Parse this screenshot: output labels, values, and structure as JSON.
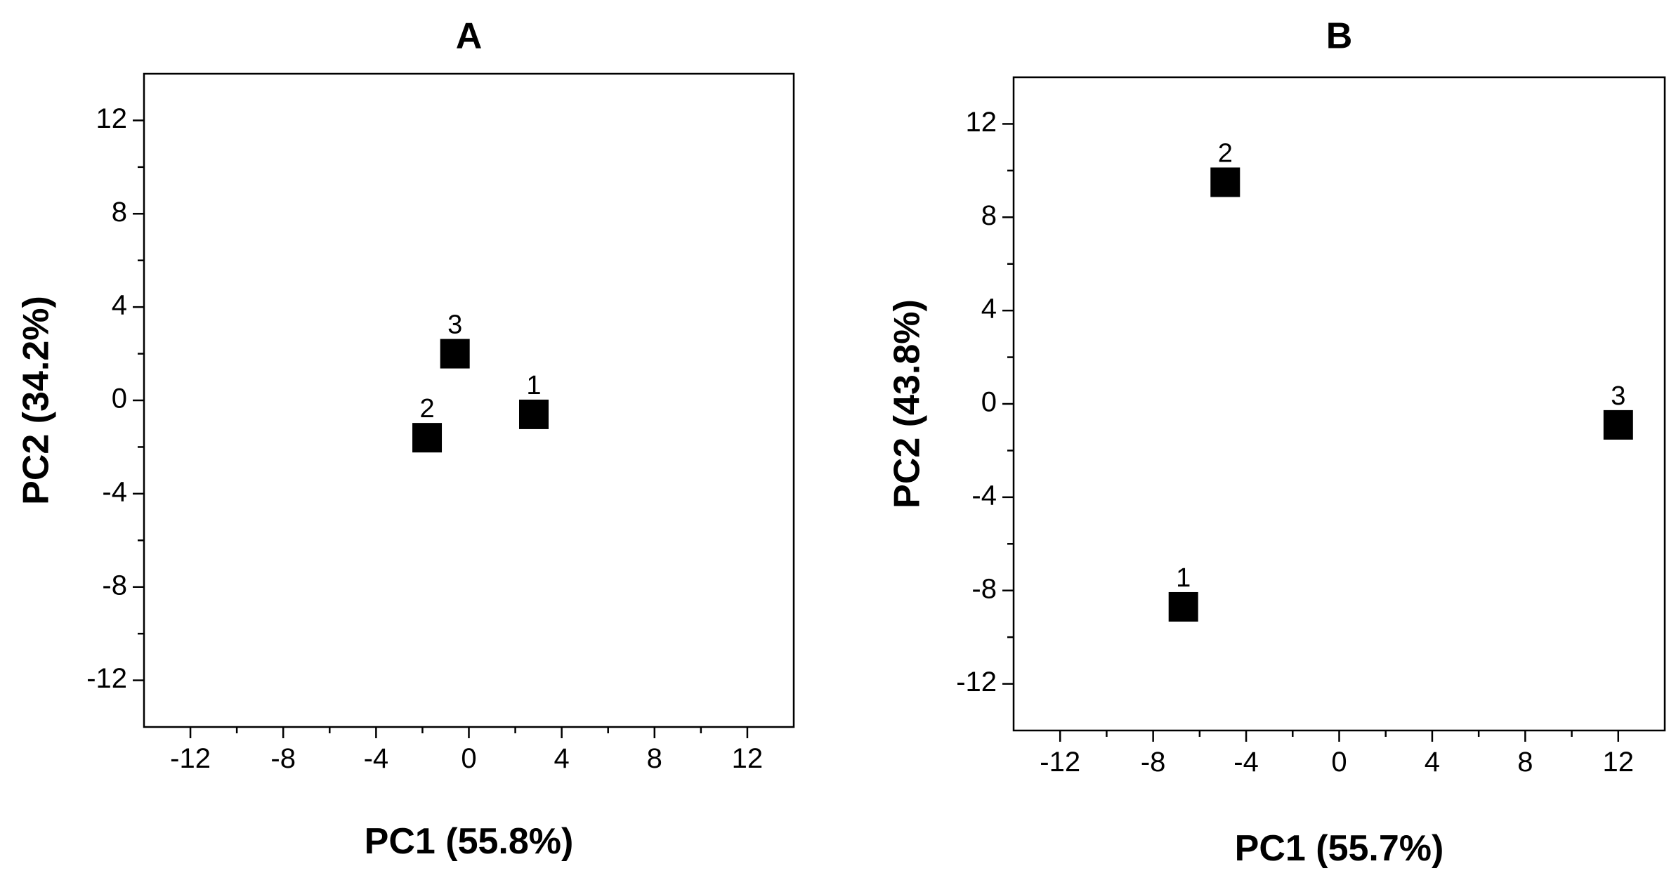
{
  "chart_data": [
    {
      "type": "scatter",
      "title": "A",
      "xlabel": "PC1 (55.8%)",
      "ylabel": "PC2 (34.2%)",
      "xlim": [
        -14,
        14
      ],
      "ylim": [
        -14,
        14
      ],
      "xticks": [
        -12,
        -8,
        -4,
        0,
        4,
        8,
        12
      ],
      "yticks": [
        12,
        8,
        4,
        0,
        -4,
        -8,
        -12
      ],
      "points": [
        {
          "label": "1",
          "x": 2.8,
          "y": -0.6
        },
        {
          "label": "2",
          "x": -1.8,
          "y": -1.6
        },
        {
          "label": "3",
          "x": -0.6,
          "y": 2.0
        }
      ]
    },
    {
      "type": "scatter",
      "title": "B",
      "xlabel": "PC1 (55.7%)",
      "ylabel": "PC2 (43.8%)",
      "xlim": [
        -14,
        14
      ],
      "ylim": [
        -14,
        14
      ],
      "xticks": [
        -12,
        -8,
        -4,
        0,
        4,
        8,
        12
      ],
      "yticks": [
        12,
        8,
        4,
        0,
        -4,
        -8,
        -12
      ],
      "points": [
        {
          "label": "1",
          "x": -6.7,
          "y": -8.7
        },
        {
          "label": "2",
          "x": -4.9,
          "y": 9.5
        },
        {
          "label": "3",
          "x": 12.0,
          "y": -0.9
        }
      ]
    }
  ]
}
